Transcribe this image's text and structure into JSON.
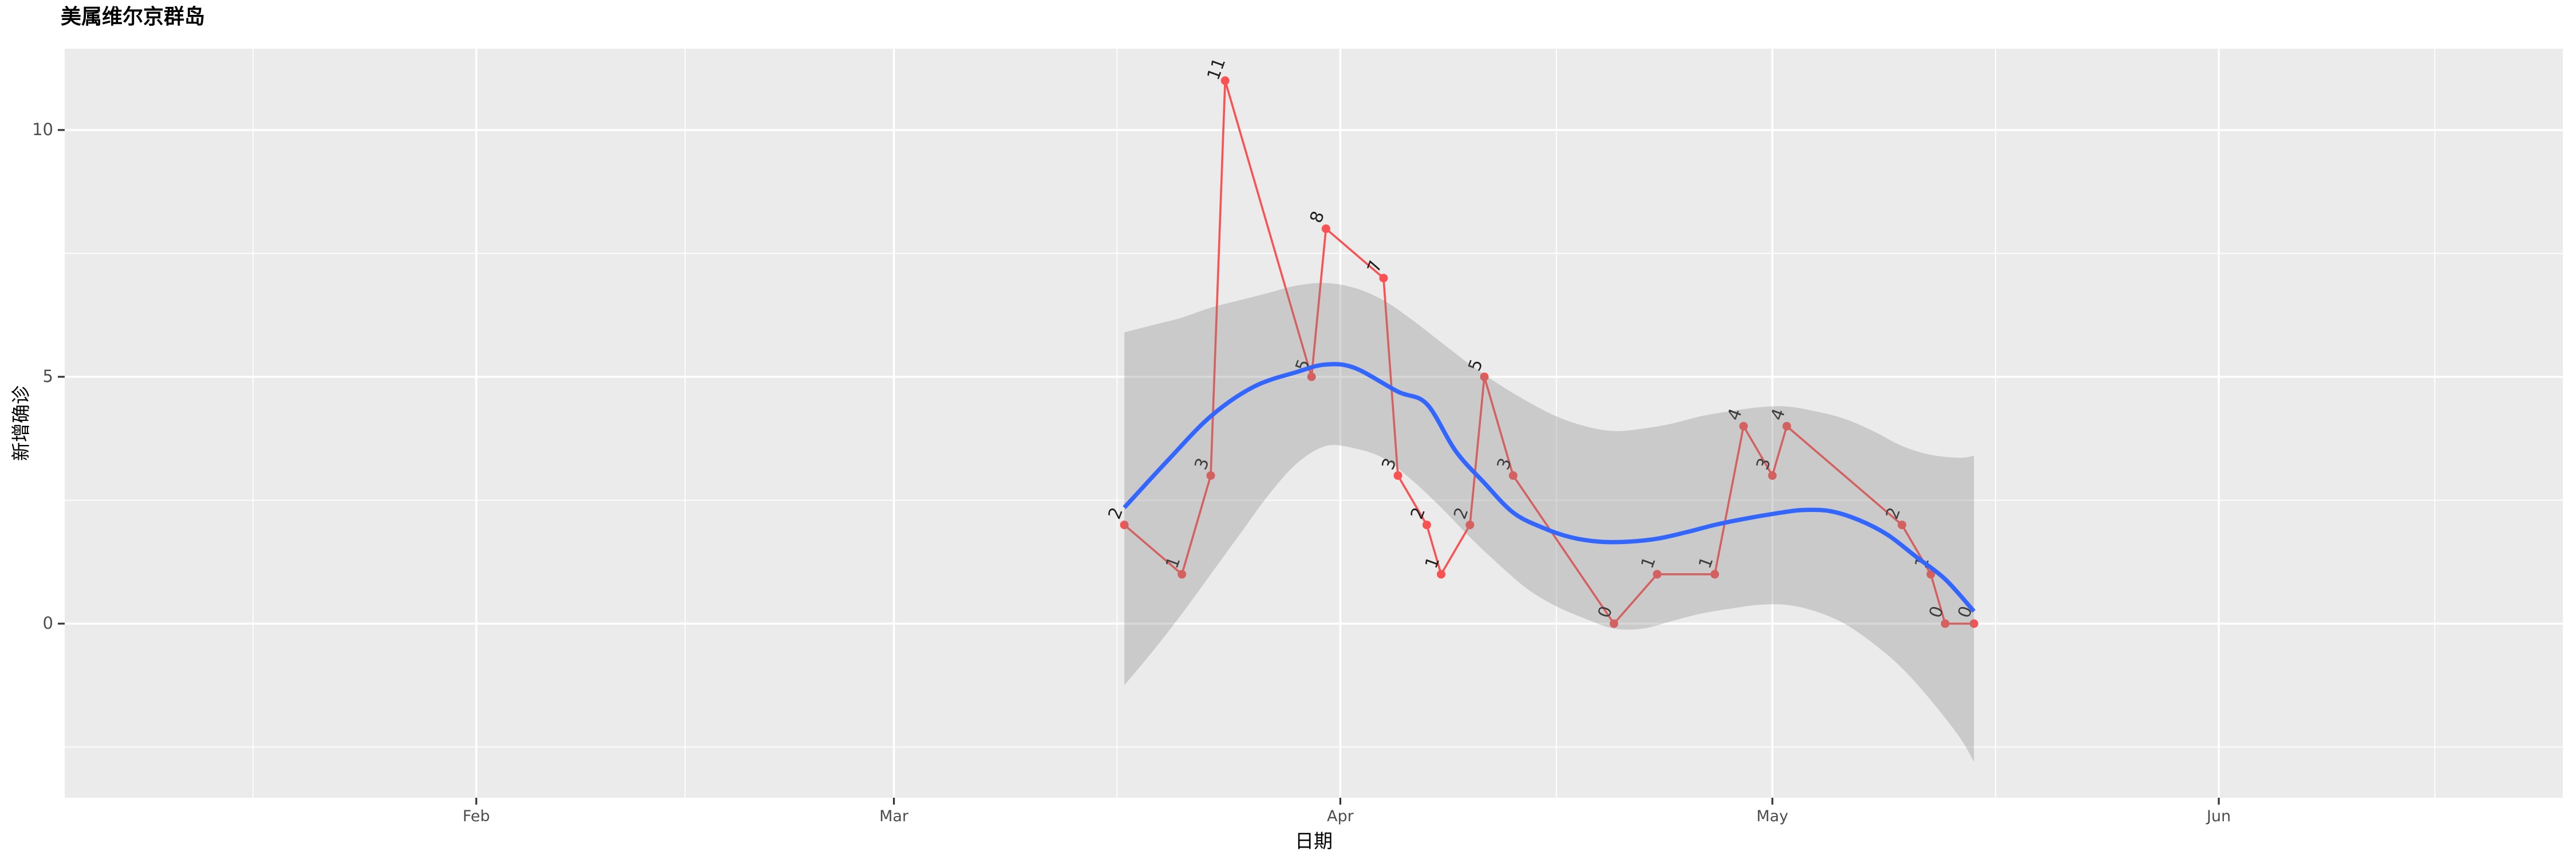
{
  "title": "美属维尔京群岛",
  "x_axis": {
    "label": "日期",
    "tick_labels": [
      "Feb",
      "Mar",
      "Apr",
      "May",
      "Jun"
    ]
  },
  "y_axis": {
    "label": "新增确诊",
    "tick_labels": [
      "0",
      "5",
      "10"
    ]
  },
  "colors": {
    "panel_background": "#EBEBEB",
    "gridline": "#FFFFFF",
    "tick_mark": "#333333",
    "tick_text": "#4d4d4d",
    "title_text": "#000000",
    "data_line": "#fa5252",
    "data_point": "#fa5252",
    "point_label": "#1f1f1f",
    "smooth_line": "#3366FF",
    "confidence_band": "rgba(128,128,128,0.31)"
  },
  "chart_data": {
    "type": "line",
    "title": "美属维尔京群岛",
    "xlabel": "日期",
    "ylabel": "新增确诊",
    "x_tick_labels": [
      "Feb",
      "Mar",
      "Apr",
      "May",
      "Jun"
    ],
    "x_tick_doy": [
      32,
      61,
      92,
      122,
      153
    ],
    "x_minor_doy": [
      16.5,
      46.5,
      76.5,
      107,
      137.5,
      168
    ],
    "y_ticks": [
      0,
      5,
      10
    ],
    "y_minor_ticks": [
      -2.5,
      2.5,
      7.5
    ],
    "ylim": [
      -3.5,
      11.6
    ],
    "grid": true,
    "legend": false,
    "series_note": "red jagged line = daily new confirmed cases with value labels; blue curve = loess smooth with gray confidence band",
    "points": [
      {
        "date": "Mar 17",
        "doy": 77,
        "value": 2
      },
      {
        "date": "Mar 21",
        "doy": 81,
        "value": 1
      },
      {
        "date": "Mar 23",
        "doy": 83,
        "value": 3
      },
      {
        "date": "Mar 24",
        "doy": 84,
        "value": 11
      },
      {
        "date": "Mar 30",
        "doy": 90,
        "value": 5
      },
      {
        "date": "Mar 31",
        "doy": 91,
        "value": 8
      },
      {
        "date": "Apr 4",
        "doy": 95,
        "value": 7
      },
      {
        "date": "Apr 5",
        "doy": 96,
        "value": 3
      },
      {
        "date": "Apr 7",
        "doy": 98,
        "value": 2
      },
      {
        "date": "Apr 8",
        "doy": 99,
        "value": 1
      },
      {
        "date": "Apr 10",
        "doy": 101,
        "value": 2
      },
      {
        "date": "Apr 11",
        "doy": 102,
        "value": 5
      },
      {
        "date": "Apr 13",
        "doy": 104,
        "value": 3
      },
      {
        "date": "Apr 20",
        "doy": 111,
        "value": 0
      },
      {
        "date": "Apr 23",
        "doy": 114,
        "value": 1
      },
      {
        "date": "Apr 27",
        "doy": 118,
        "value": 1
      },
      {
        "date": "Apr 29",
        "doy": 120,
        "value": 4
      },
      {
        "date": "May 1",
        "doy": 122,
        "value": 3
      },
      {
        "date": "May 2",
        "doy": 123,
        "value": 4
      },
      {
        "date": "May 10",
        "doy": 131,
        "value": 2
      },
      {
        "date": "May 12",
        "doy": 133,
        "value": 1
      },
      {
        "date": "May 13",
        "doy": 134,
        "value": 0
      },
      {
        "date": "May 15",
        "doy": 136,
        "value": 0
      }
    ],
    "smooth": [
      [
        77,
        2.35
      ],
      [
        80,
        3.3
      ],
      [
        83,
        4.2
      ],
      [
        86,
        4.8
      ],
      [
        89,
        5.1
      ],
      [
        91,
        5.25
      ],
      [
        93,
        5.18
      ],
      [
        96,
        4.7
      ],
      [
        98,
        4.45
      ],
      [
        100,
        3.5
      ],
      [
        102,
        2.85
      ],
      [
        104,
        2.25
      ],
      [
        106,
        1.95
      ],
      [
        108,
        1.75
      ],
      [
        110,
        1.66
      ],
      [
        112,
        1.66
      ],
      [
        114,
        1.72
      ],
      [
        116,
        1.85
      ],
      [
        118,
        2.0
      ],
      [
        120,
        2.12
      ],
      [
        122,
        2.22
      ],
      [
        124,
        2.3
      ],
      [
        126,
        2.28
      ],
      [
        128,
        2.1
      ],
      [
        130,
        1.8
      ],
      [
        132,
        1.35
      ],
      [
        134,
        0.9
      ],
      [
        136,
        0.25
      ]
    ],
    "band": [
      [
        77,
        5.9,
        -1.25
      ],
      [
        79,
        6.05,
        -0.55
      ],
      [
        81,
        6.2,
        0.2
      ],
      [
        83,
        6.4,
        1.0
      ],
      [
        85,
        6.55,
        1.8
      ],
      [
        87,
        6.7,
        2.6
      ],
      [
        89,
        6.85,
        3.25
      ],
      [
        91,
        6.9,
        3.6
      ],
      [
        93,
        6.8,
        3.55
      ],
      [
        95,
        6.55,
        3.35
      ],
      [
        97,
        6.15,
        2.9
      ],
      [
        99,
        5.7,
        2.35
      ],
      [
        101,
        5.25,
        1.75
      ],
      [
        103,
        4.85,
        1.2
      ],
      [
        105,
        4.5,
        0.7
      ],
      [
        107,
        4.2,
        0.35
      ],
      [
        109,
        4.0,
        0.1
      ],
      [
        111,
        3.9,
        -0.1
      ],
      [
        113,
        3.95,
        -0.1
      ],
      [
        115,
        4.05,
        0.05
      ],
      [
        117,
        4.2,
        0.2
      ],
      [
        119,
        4.3,
        0.3
      ],
      [
        121,
        4.38,
        0.38
      ],
      [
        123,
        4.4,
        0.38
      ],
      [
        125,
        4.3,
        0.25
      ],
      [
        127,
        4.15,
        0.0
      ],
      [
        129,
        3.9,
        -0.4
      ],
      [
        131,
        3.6,
        -0.9
      ],
      [
        133,
        3.42,
        -1.55
      ],
      [
        135,
        3.36,
        -2.3
      ],
      [
        136,
        3.4,
        -2.8
      ]
    ]
  }
}
